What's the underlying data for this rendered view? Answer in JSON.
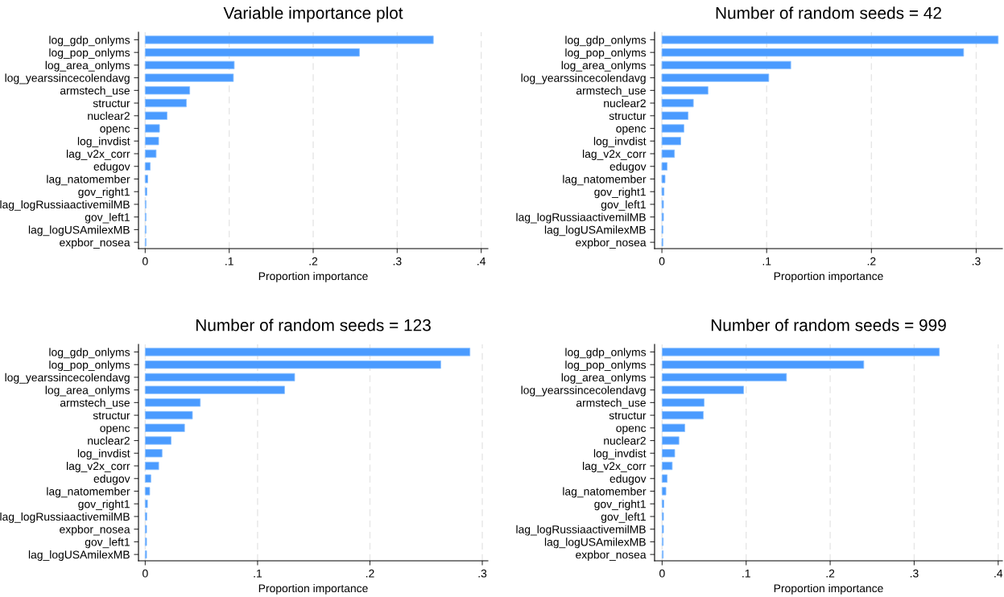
{
  "chart_data": [
    {
      "type": "bar",
      "orientation": "horizontal",
      "title": "Variable importance plot",
      "xlabel": "Proportion importance",
      "color": "#4a9bff",
      "grid": "x",
      "legend": false,
      "categories": [
        "log_gdp_onlyms",
        "log_pop_onlyms",
        "log_area_onlyms",
        "log_yearssincecolendavg",
        "armstech_use",
        "structur",
        "nuclear2",
        "openc",
        "log_invdist",
        "lag_v2x_corr",
        "edugov",
        "lag_natomember",
        "gov_right1",
        "lag_logRussiaactivemilMB",
        "gov_left1",
        "lag_logUSAmilexMB",
        "expbor_nosea"
      ],
      "values": [
        0.343,
        0.255,
        0.106,
        0.105,
        0.053,
        0.049,
        0.026,
        0.017,
        0.016,
        0.013,
        0.006,
        0.003,
        0.002,
        0.001,
        0.001,
        0.001,
        0.001
      ],
      "xlim": [
        -0.008,
        0.408
      ],
      "xticks": [
        0,
        {
          "value": 0.1,
          "label": ".1"
        },
        {
          "value": 0.2,
          "label": ".2"
        },
        {
          "value": 0.3,
          "label": ".3"
        },
        {
          "value": 0.4,
          "label": ".4"
        }
      ]
    },
    {
      "type": "bar",
      "orientation": "horizontal",
      "title": "Number of random seeds = 42",
      "xlabel": "Proportion importance",
      "color": "#4a9bff",
      "grid": "x",
      "legend": false,
      "categories": [
        "log_gdp_onlyms",
        "log_pop_onlyms",
        "log_area_onlyms",
        "log_yearssincecolendavg",
        "armstech_use",
        "nuclear2",
        "structur",
        "openc",
        "log_invdist",
        "lag_v2x_corr",
        "edugov",
        "lag_natomember",
        "gov_right1",
        "gov_left1",
        "lag_logRussiaactivemilMB",
        "lag_logUSAmilexMB",
        "expbor_nosea"
      ],
      "values": [
        0.321,
        0.288,
        0.123,
        0.102,
        0.044,
        0.03,
        0.025,
        0.021,
        0.018,
        0.012,
        0.005,
        0.003,
        0.002,
        0.0015,
        0.0015,
        0.001,
        0.001
      ],
      "xlim": [
        -0.007,
        0.325
      ],
      "xticks": [
        0,
        {
          "value": 0.1,
          "label": ".1"
        },
        {
          "value": 0.2,
          "label": ".2"
        },
        {
          "value": 0.3,
          "label": ".3"
        }
      ]
    },
    {
      "type": "bar",
      "orientation": "horizontal",
      "title": "Number of random seeds = 123",
      "xlabel": "Proportion importance",
      "color": "#4a9bff",
      "grid": "x",
      "legend": false,
      "categories": [
        "log_gdp_onlyms",
        "log_pop_onlyms",
        "log_yearssincecolendavg",
        "log_area_onlyms",
        "armstech_use",
        "structur",
        "openc",
        "nuclear2",
        "log_invdist",
        "lag_v2x_corr",
        "edugov",
        "lag_natomember",
        "gov_right1",
        "lag_logRussiaactivemilMB",
        "expbor_nosea",
        "gov_left1",
        "lag_logUSAmilexMB"
      ],
      "values": [
        0.289,
        0.263,
        0.133,
        0.124,
        0.049,
        0.042,
        0.035,
        0.023,
        0.015,
        0.012,
        0.005,
        0.004,
        0.002,
        0.0014,
        0.0012,
        0.0012,
        0.0012
      ],
      "xlim": [
        -0.006,
        0.305
      ],
      "xticks": [
        0,
        {
          "value": 0.1,
          "label": ".1"
        },
        {
          "value": 0.2,
          "label": ".2"
        },
        {
          "value": 0.3,
          "label": ".3"
        }
      ]
    },
    {
      "type": "bar",
      "orientation": "horizontal",
      "title": "Number of random seeds = 999",
      "xlabel": "Proportion importance",
      "color": "#4a9bff",
      "grid": "x",
      "legend": false,
      "categories": [
        "log_gdp_onlyms",
        "log_pop_onlyms",
        "log_area_onlyms",
        "log_yearssincecolendavg",
        "armstech_use",
        "structur",
        "openc",
        "nuclear2",
        "log_invdist",
        "lag_v2x_corr",
        "edugov",
        "lag_natomember",
        "gov_right1",
        "gov_left1",
        "lag_logRussiaactivemilMB",
        "lag_logUSAmilexMB",
        "expbor_nosea"
      ],
      "values": [
        0.33,
        0.24,
        0.148,
        0.097,
        0.05,
        0.049,
        0.027,
        0.02,
        0.015,
        0.012,
        0.006,
        0.0045,
        0.002,
        0.0016,
        0.0016,
        0.0013,
        0.0013
      ],
      "xlim": [
        -0.009,
        0.405
      ],
      "xticks": [
        0,
        {
          "value": 0.1,
          "label": ".1"
        },
        {
          "value": 0.2,
          "label": ".2"
        },
        {
          "value": 0.3,
          "label": ".3"
        },
        {
          "value": 0.4,
          "label": ".4"
        }
      ]
    }
  ]
}
